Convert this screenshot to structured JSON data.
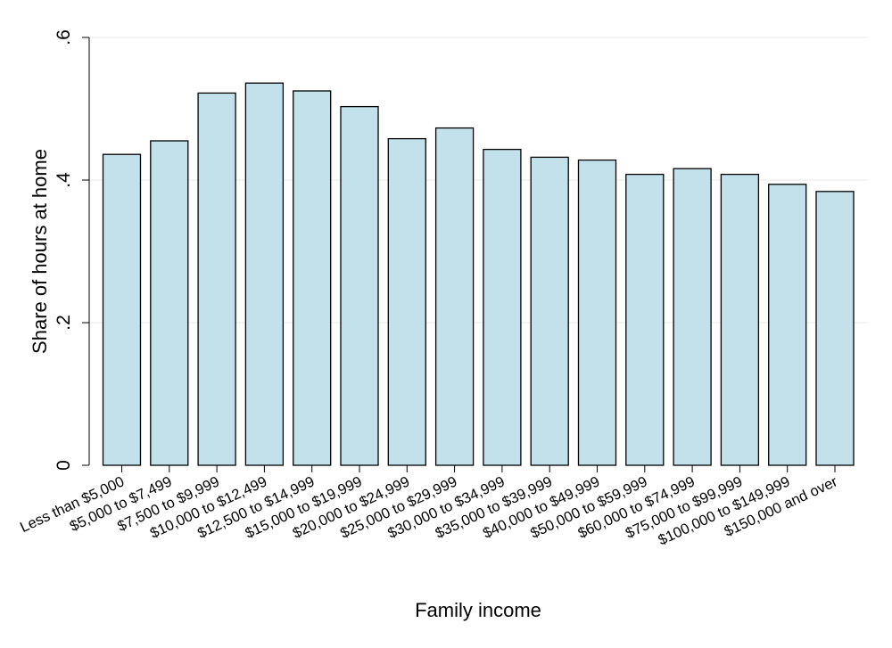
{
  "chart_data": {
    "type": "bar",
    "title": "",
    "xlabel": "Family income",
    "ylabel": "Share of hours at home",
    "ylim": [
      0,
      0.6
    ],
    "yticks": [
      0,
      0.2,
      0.4,
      0.6
    ],
    "ytick_labels": [
      "0",
      ".2",
      ".4",
      ".6"
    ],
    "grid": "horizontal",
    "categories": [
      "Less than $5,000",
      "$5,000 to $7,499",
      "$7,500 to $9,999",
      "$10,000 to $12,499",
      "$12,500 to $14,999",
      "$15,000 to $19,999",
      "$20,000 to $24,999",
      "$25,000 to $29,999",
      "$30,000 to $34,999",
      "$35,000 to $39,999",
      "$40,000 to $49,999",
      "$50,000 to $59,999",
      "$60,000 to $74,999",
      "$75,000 to $99,999",
      "$100,000 to $149,999",
      "$150,000 and over"
    ],
    "values": [
      0.436,
      0.455,
      0.522,
      0.536,
      0.525,
      0.503,
      0.458,
      0.473,
      0.443,
      0.432,
      0.428,
      0.408,
      0.416,
      0.408,
      0.394,
      0.384
    ],
    "bar_color": "#c2e1ea",
    "bar_edge_color": "#000000"
  }
}
